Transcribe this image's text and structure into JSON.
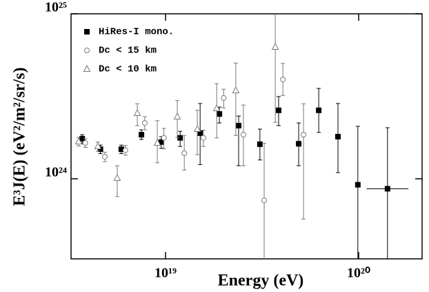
{
  "chart_data": {
    "type": "scatter",
    "log_x": true,
    "log_y": true,
    "x_label": "Energy (eV)",
    "y_label": "E³J(E) (eV²/m²/sr/s)",
    "xlim": [
      3.24e+18,
      2.13e+20
    ],
    "ylim": [
      3.27e+23,
      1e+25
    ],
    "xticks": [
      {
        "value": 1e+19,
        "label": "10¹⁹"
      },
      {
        "value": 1e+20,
        "label": "10²⁰"
      }
    ],
    "yticks": [
      {
        "value": 1e+24,
        "label": "10²⁴"
      },
      {
        "value": 1e+25,
        "label": "10²⁵"
      }
    ],
    "legend": "upper left",
    "series": [
      {
        "name": "HiRes-I mono.",
        "marker": "square",
        "color": "#000000",
        "x": [
          3.7e+18,
          4.6e+18,
          5.9e+18,
          7.5e+18,
          9.5e+18,
          1.19e+19,
          1.51e+19,
          1.9e+19,
          2.39e+19,
          3.08e+19,
          3.85e+19,
          4.89e+19,
          6.21e+19,
          7.81e+19,
          9.9e+19,
          1.41e+20
        ],
        "values": [
          1.75e+24,
          1.51e+24,
          1.51e+24,
          1.85e+24,
          1.67e+24,
          1.77e+24,
          1.89e+24,
          2.47e+24,
          2.1e+24,
          1.62e+24,
          2.6e+24,
          1.63e+24,
          2.6e+24,
          1.8e+24,
          9.2e+23,
          8.7e+23
        ],
        "yerr": [
          [
            1.2e+23,
            1e+23
          ],
          [
            9e+22,
            9e+22
          ],
          [
            9e+22,
            9e+22
          ],
          [
            1.2e+23,
            1.3e+23
          ],
          [
            1.4e+23,
            1.3e+23
          ],
          [
            2e+23,
            1.7e+23
          ],
          [
            6.7e+23,
            9.7e+23
          ],
          [
            2.9e+23,
            2.5e+23
          ],
          [
            9e+23,
            3e+23
          ],
          [
            3.2e+23,
            3.8e+23
          ],
          [
            5e+23,
            5.5e+23
          ],
          [
            4.3e+23,
            5.5e+23
          ],
          [
            6.9e+23,
            9.3e+23
          ],
          [
            7.1e+23,
            1.06e+24
          ],
          [
            9.2e+23,
            1.16e+24
          ],
          [
            8.7e+23,
            1.17e+24
          ]
        ],
        "xerr": [
          null,
          null,
          null,
          null,
          null,
          null,
          null,
          null,
          null,
          null,
          null,
          null,
          null,
          null,
          null,
          [
            3.1e+19,
            4e+19
          ]
        ]
      },
      {
        "name": "Dc < 15 km",
        "marker": "circle",
        "color": "#777777",
        "x": [
          3.84e+18,
          4.85e+18,
          6.2e+18,
          7.8e+18,
          9.8e+18,
          1.25e+19,
          1.57e+19,
          2e+19,
          2.53e+19,
          3.24e+19,
          4.05e+19,
          5.18e+19
        ],
        "values": [
          1.65e+24,
          1.36e+24,
          1.49e+24,
          2.18e+24,
          1.77e+24,
          1.43e+24,
          1.77e+24,
          3.09e+24,
          1.85e+24,
          7.4e+23,
          4e+24,
          1.85e+24
        ],
        "yerr": [
          [
            1e+23,
            1e+23
          ],
          [
            9e+22,
            9e+22
          ],
          [
            1e+23,
            1e+23
          ],
          [
            2e+23,
            2e+23
          ],
          [
            2.5e+23,
            2.5e+23
          ],
          [
            3e+23,
            4e+23
          ],
          [
            2e+23,
            2e+23
          ],
          [
            4e+23,
            4e+23
          ],
          [
            6.5e+23,
            9.5e+23
          ],
          [
            7.4e+23,
            9e+23
          ],
          [
            8e+23,
            1e+24
          ],
          [
            1.28e+24,
            1e+24
          ]
        ]
      },
      {
        "name": "Dc < 10 km",
        "marker": "triangle",
        "color": "#777777",
        "x": [
          3.55e+18,
          4.46e+18,
          5.62e+18,
          7.14e+18,
          9.06e+18,
          1.15e+19,
          1.46e+19,
          1.84e+19,
          2.31e+19,
          3.7e+19
        ],
        "values": [
          1.68e+24,
          1.57e+24,
          1.01e+24,
          2.5e+24,
          1.65e+24,
          2.38e+24,
          2e+24,
          2.67e+24,
          3.43e+24,
          6.3e+24
        ],
        "yerr": [
          [
            1e+23,
            1e+23
          ],
          [
            1e+23,
            1e+23
          ],
          [
            2.3e+23,
            1.9e+23
          ],
          [
            4e+23,
            3.5e+23
          ],
          [
            4e+23,
            6e+23
          ],
          [
            6e+23,
            6e+23
          ],
          [
            6e+23,
            6e+23
          ],
          [
            9e+23,
            1.1e+24
          ],
          [
            1.6e+24,
            1.6e+24
          ],
          [
            4.1e+24,
            3.7e+24
          ]
        ]
      }
    ]
  }
}
